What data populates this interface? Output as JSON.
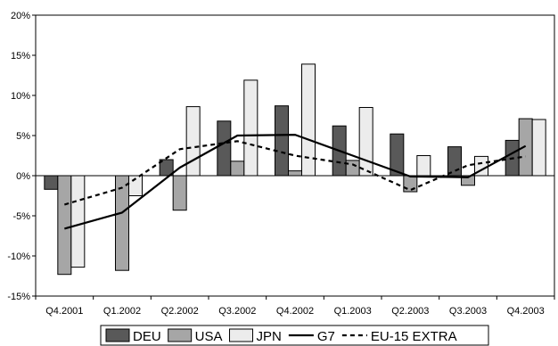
{
  "chart_data": {
    "type": "bar",
    "title": "",
    "xlabel": "",
    "ylabel": "",
    "categories": [
      "Q4.2001",
      "Q1.2002",
      "Q2.2002",
      "Q3.2002",
      "Q4.2002",
      "Q1.2003",
      "Q2.2003",
      "Q3.2003",
      "Q4.2003"
    ],
    "ylim": [
      -15,
      20
    ],
    "yticks": [
      -15,
      -10,
      -5,
      0,
      5,
      10,
      15,
      20
    ],
    "ytick_labels": [
      "-15%",
      "-10%",
      "-5%",
      "0%",
      "5%",
      "10%",
      "15%",
      "20%"
    ],
    "grid": false,
    "legend_position": "bottom",
    "series": [
      {
        "name": "DEU",
        "kind": "bar",
        "color": "#595959",
        "values": [
          -1.7,
          0,
          2.0,
          6.8,
          8.7,
          6.2,
          5.2,
          3.6,
          4.4
        ]
      },
      {
        "name": "USA",
        "kind": "bar",
        "color": "#a6a6a6",
        "values": [
          -12.3,
          -11.8,
          -4.3,
          1.8,
          0.6,
          1.9,
          -2.0,
          -1.2,
          7.1
        ]
      },
      {
        "name": "JPN",
        "kind": "bar",
        "color": "#ececec",
        "values": [
          -11.4,
          -2.5,
          8.6,
          11.9,
          13.9,
          8.5,
          2.5,
          2.4,
          7.0
        ]
      },
      {
        "name": "G7",
        "kind": "line",
        "color": "#000000",
        "dash": "solid",
        "values": [
          -6.6,
          -4.6,
          1.0,
          5.0,
          5.1,
          2.5,
          -0.1,
          -0.2,
          3.7
        ]
      },
      {
        "name": "EU-15 EXTRA",
        "kind": "line",
        "color": "#000000",
        "dash": "dashed",
        "values": [
          -3.6,
          -1.5,
          3.3,
          4.3,
          2.5,
          1.4,
          -1.8,
          1.3,
          2.4
        ]
      }
    ]
  }
}
